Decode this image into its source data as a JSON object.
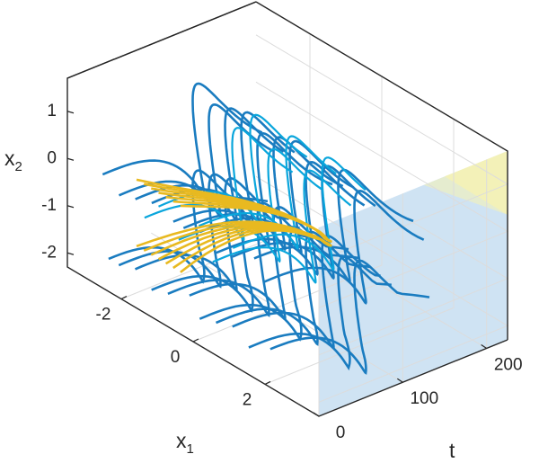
{
  "chart_data": {
    "type": "line3d",
    "title": "",
    "axes": {
      "x": {
        "label": "x",
        "label_subscript": "1",
        "ticks": [
          -2,
          0,
          2
        ],
        "tick_labels": [
          "-2",
          "0",
          "2"
        ],
        "range": [
          -3.5,
          3.5
        ]
      },
      "y": {
        "label": "t",
        "ticks": [
          0,
          100,
          200
        ],
        "tick_labels": [
          "0",
          "100",
          "200"
        ],
        "range": [
          0,
          225
        ]
      },
      "z": {
        "label": "x",
        "label_subscript": "2",
        "ticks": [
          1,
          0,
          -1,
          -2
        ],
        "tick_labels": [
          "1",
          "0",
          "-1",
          "-2"
        ],
        "range": [
          -2.3,
          1.7
        ]
      }
    },
    "grid": true,
    "regions": [
      {
        "name": "yellow region",
        "color": "#f3f1b8"
      },
      {
        "name": "blue region",
        "color": "#cfe3f3"
      }
    ],
    "series": [
      {
        "color": "#1a7cc0",
        "role": "blue trajectories",
        "count": 22
      },
      {
        "color": "#0aa6dc",
        "role": "cyan trajectories",
        "count": 6
      },
      {
        "color": "#e8b920",
        "role": "yellow trajectories",
        "count": 14
      }
    ]
  }
}
